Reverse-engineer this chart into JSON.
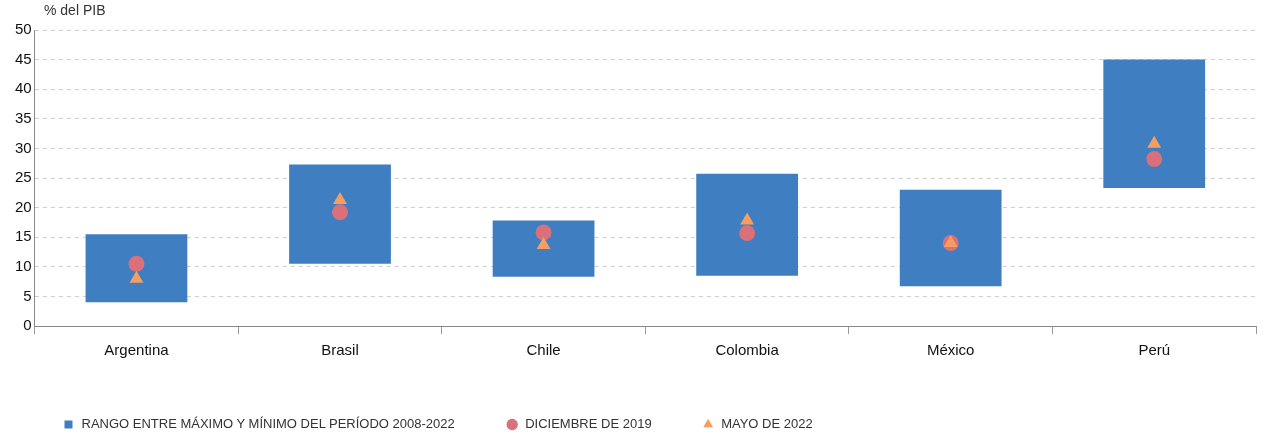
{
  "chart_data": {
    "type": "bar",
    "ylabel": "% del PIB",
    "categories": [
      "Argentina",
      "Brasil",
      "Chile",
      "Colombia",
      "México",
      "Perú"
    ],
    "ylim": [
      0,
      50
    ],
    "yticks": [
      0,
      5,
      10,
      15,
      20,
      25,
      30,
      35,
      40,
      45,
      50
    ],
    "grid": "y",
    "legend": "bottom",
    "series": [
      {
        "name": "RANGO ENTRE MÁXIMO Y MÍNIMO DEL PERÍODO 2008-2022",
        "color": "#3f7fc1",
        "base": [
          4.0,
          10.5,
          8.3,
          8.5,
          6.7,
          23.3
        ],
        "values": [
          11.5,
          16.8,
          9.5,
          17.2,
          16.3,
          21.7
        ]
      },
      {
        "name": "DICIEMBRE DE 2019",
        "type": "scatter",
        "marker": "circle",
        "color": "#d9707a",
        "x": [
          "Argentina",
          "Brasil",
          "Chile",
          "Colombia",
          "México",
          "Perú"
        ],
        "values": [
          10.5,
          19.2,
          15.8,
          15.7,
          14.0,
          28.2
        ]
      },
      {
        "name": "MAYO DE 2022",
        "type": "scatter",
        "marker": "triangle",
        "color": "#f59e5f",
        "x": [
          "Argentina",
          "Brasil",
          "Chile",
          "Colombia",
          "México",
          "Perú"
        ],
        "values": [
          8.0,
          21.3,
          13.7,
          17.8,
          14.0,
          30.8
        ]
      }
    ]
  }
}
